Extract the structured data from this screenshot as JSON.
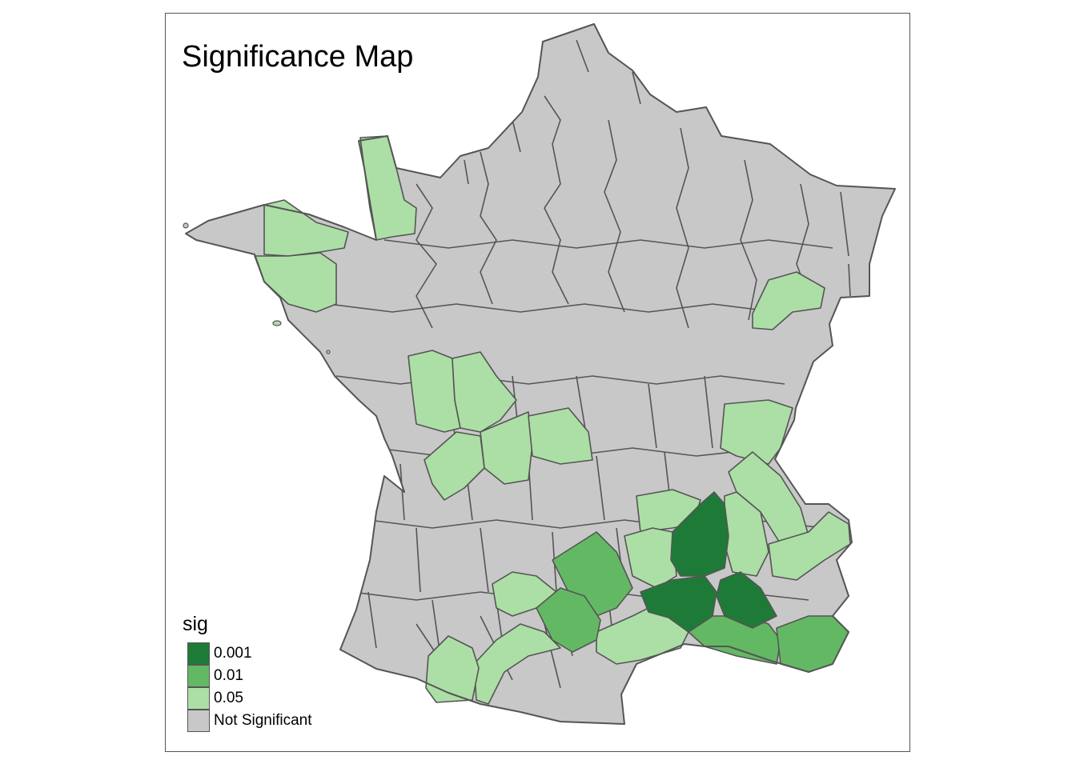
{
  "title": "Significance Map",
  "legend": {
    "title": "sig",
    "items": [
      {
        "label": "0.001",
        "color": "#1E7B37"
      },
      {
        "label": "0.01",
        "color": "#63B963"
      },
      {
        "label": "0.05",
        "color": "#ACDFA6"
      },
      {
        "label": "Not Significant",
        "color": "#C8C8C8"
      }
    ]
  },
  "colors": {
    "border": "#555555",
    "not_significant": "#C8C8C8",
    "p005": "#ACDFA6",
    "p001": "#63B963",
    "p0001": "#1E7B37"
  }
}
